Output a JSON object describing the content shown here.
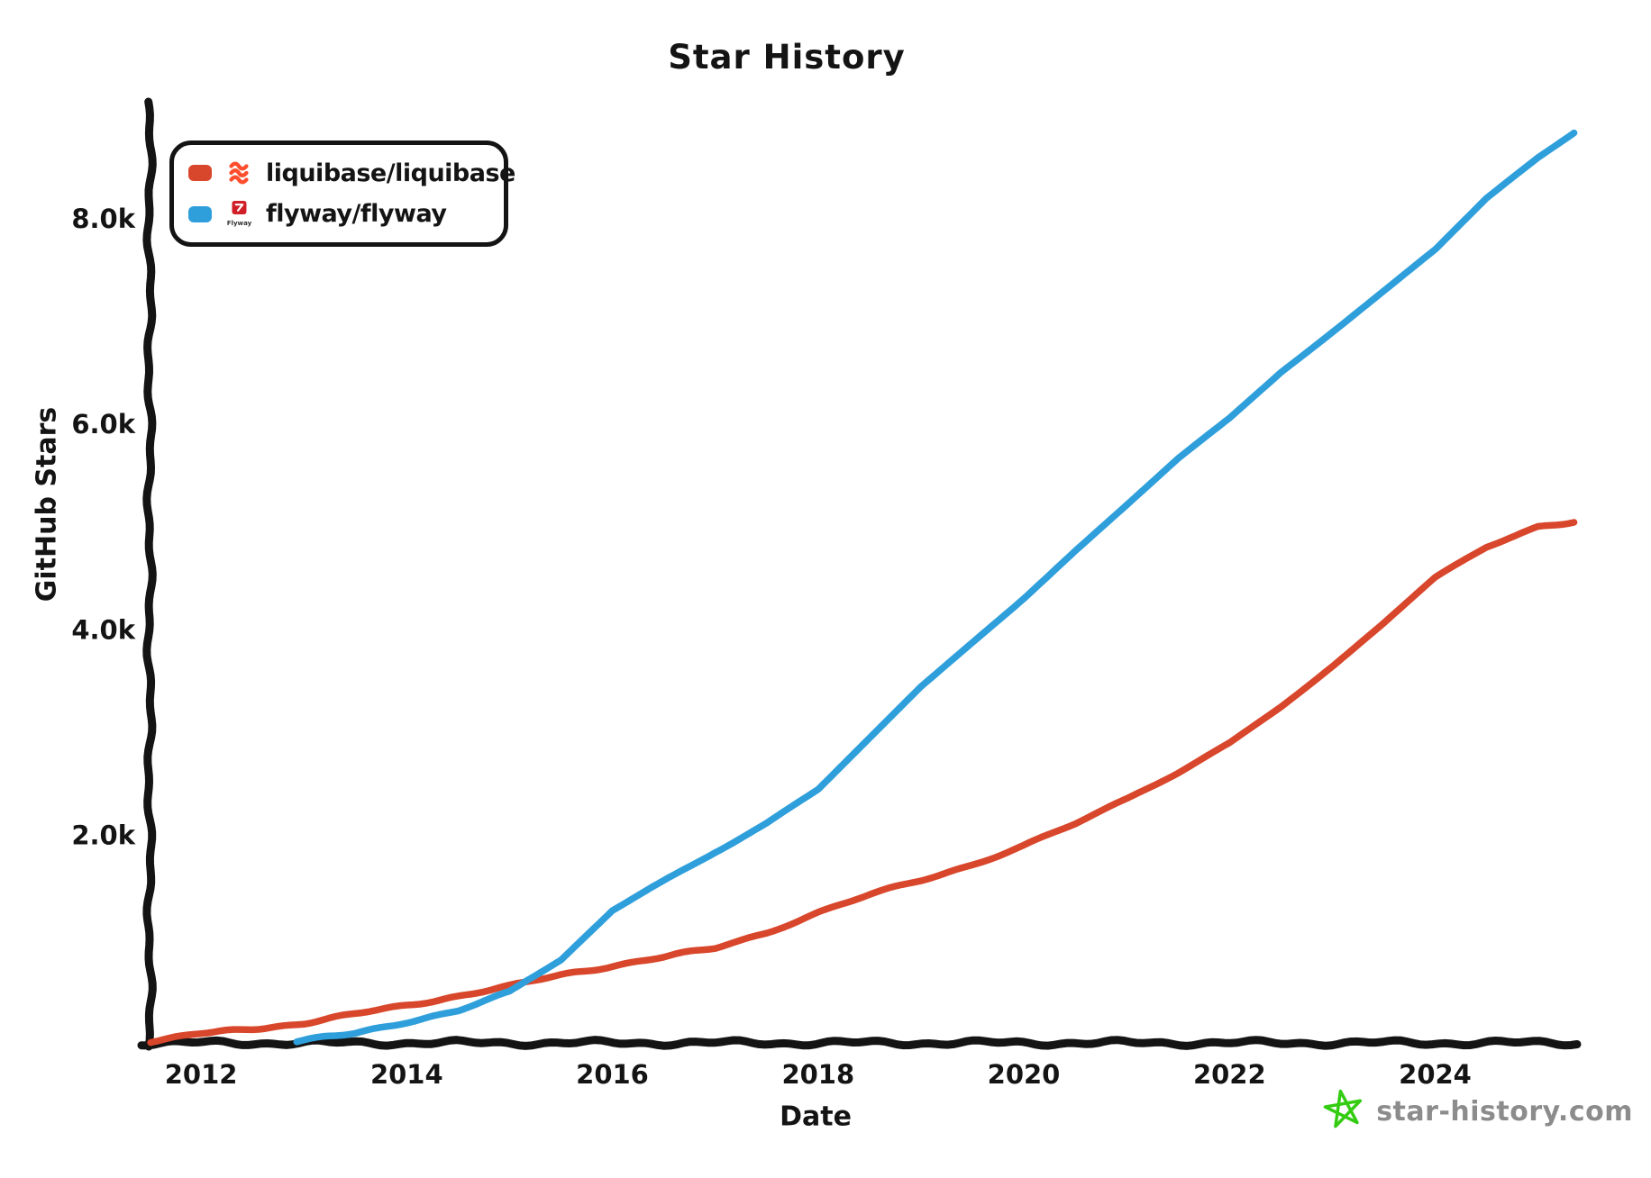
{
  "title": "Star History",
  "legend": {
    "items": [
      {
        "label": "liquibase/liquibase",
        "color": "#d8462b",
        "logo": "liquibase-logo",
        "logo_color": "#ff4e2d"
      },
      {
        "label": "flyway/flyway",
        "color": "#2f9fdb",
        "logo": "flyway-logo",
        "logo_color": "#d01f28",
        "icon_text": "Flyway"
      }
    ]
  },
  "watermark": {
    "text": "star-history.com",
    "text_color": "#8c8c8c",
    "star_color": "#33cc11"
  },
  "chart_data": {
    "type": "line",
    "title": "Star History",
    "xlabel": "Date",
    "ylabel": "GitHub Stars",
    "x_unit": "decimal_year",
    "y_unit": "stars",
    "xlim": [
      2011.5,
      2025.38
    ],
    "ylim": [
      0,
      9120
    ],
    "grid": false,
    "legend_position": "top-left",
    "axis_color": "#141414",
    "x_ticks": [
      {
        "value": 2012,
        "label": "2012"
      },
      {
        "value": 2014,
        "label": "2014"
      },
      {
        "value": 2016,
        "label": "2016"
      },
      {
        "value": 2018,
        "label": "2018"
      },
      {
        "value": 2020,
        "label": "2020"
      },
      {
        "value": 2022,
        "label": "2022"
      },
      {
        "value": 2024,
        "label": "2024"
      }
    ],
    "y_ticks": [
      {
        "value": 2000,
        "label": "2.0k"
      },
      {
        "value": 4000,
        "label": "4.0k"
      },
      {
        "value": 6000,
        "label": "6.0k"
      },
      {
        "value": 8000,
        "label": "8.0k"
      }
    ],
    "series": [
      {
        "name": "liquibase/liquibase",
        "color": "#d8462b",
        "points": [
          [
            2011.51,
            0
          ],
          [
            2012,
            70
          ],
          [
            2012.5,
            120
          ],
          [
            2013,
            175
          ],
          [
            2013.5,
            260
          ],
          [
            2014,
            350
          ],
          [
            2014.5,
            440
          ],
          [
            2015,
            530
          ],
          [
            2015.5,
            645
          ],
          [
            2016,
            735
          ],
          [
            2016.5,
            815
          ],
          [
            2017,
            905
          ],
          [
            2017.5,
            1060
          ],
          [
            2018,
            1250
          ],
          [
            2018.5,
            1420
          ],
          [
            2019,
            1565
          ],
          [
            2019.5,
            1720
          ],
          [
            2020,
            1900
          ],
          [
            2020.5,
            2110
          ],
          [
            2021,
            2350
          ],
          [
            2021.5,
            2620
          ],
          [
            2022,
            2905
          ],
          [
            2022.5,
            3260
          ],
          [
            2023,
            3650
          ],
          [
            2023.5,
            4060
          ],
          [
            2024,
            4500
          ],
          [
            2024.5,
            4800
          ],
          [
            2025,
            5000
          ],
          [
            2025.35,
            5060
          ]
        ]
      },
      {
        "name": "flyway/flyway",
        "color": "#2f9fdb",
        "points": [
          [
            2012.93,
            0
          ],
          [
            2013.5,
            70
          ],
          [
            2014,
            190
          ],
          [
            2014.5,
            300
          ],
          [
            2015,
            470
          ],
          [
            2015.5,
            790
          ],
          [
            2016,
            1270
          ],
          [
            2016.5,
            1560
          ],
          [
            2017,
            1850
          ],
          [
            2017.5,
            2120
          ],
          [
            2018,
            2450
          ],
          [
            2018.5,
            2950
          ],
          [
            2019,
            3450
          ],
          [
            2019.5,
            3880
          ],
          [
            2020,
            4300
          ],
          [
            2020.5,
            4760
          ],
          [
            2021,
            5200
          ],
          [
            2021.5,
            5650
          ],
          [
            2022,
            6050
          ],
          [
            2022.5,
            6500
          ],
          [
            2023,
            6900
          ],
          [
            2023.5,
            7300
          ],
          [
            2024,
            7700
          ],
          [
            2024.5,
            8200
          ],
          [
            2025,
            8600
          ],
          [
            2025.35,
            8850
          ]
        ]
      }
    ]
  }
}
